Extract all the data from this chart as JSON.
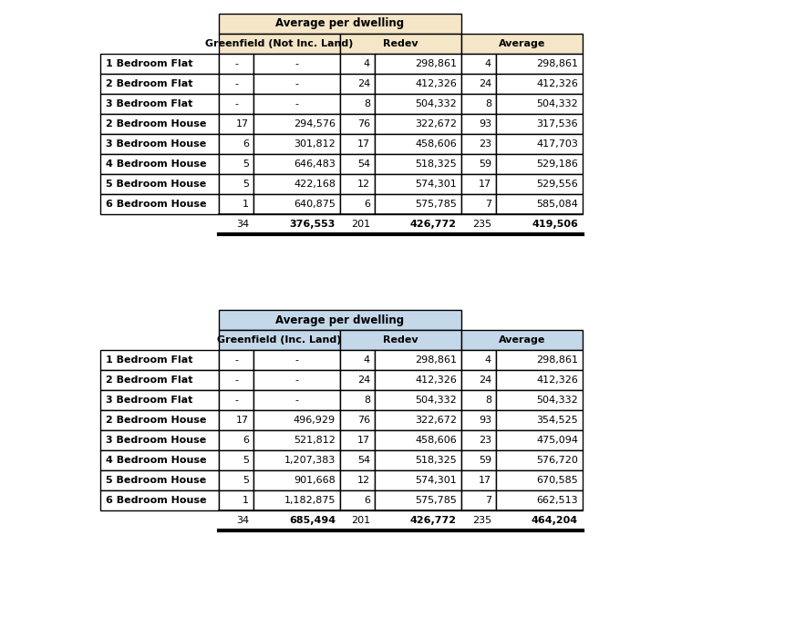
{
  "table1": {
    "title": "Average per dwelling",
    "header_color": "#F5E6C8",
    "col_headers": [
      "Greenfield (Not Inc. Land)",
      "Redev",
      "Average"
    ],
    "row_labels": [
      "1 Bedroom Flat",
      "2 Bedroom Flat",
      "3 Bedroom Flat",
      "2 Bedroom House",
      "3 Bedroom House",
      "4 Bedroom House",
      "5 Bedroom House",
      "6 Bedroom House"
    ],
    "data": [
      [
        "-",
        "-",
        "4",
        "298,861",
        "4",
        "298,861"
      ],
      [
        "-",
        "-",
        "24",
        "412,326",
        "24",
        "412,326"
      ],
      [
        "-",
        "-",
        "8",
        "504,332",
        "8",
        "504,332"
      ],
      [
        "17",
        "294,576",
        "76",
        "322,672",
        "93",
        "317,536"
      ],
      [
        "6",
        "301,812",
        "17",
        "458,606",
        "23",
        "417,703"
      ],
      [
        "5",
        "646,483",
        "54",
        "518,325",
        "59",
        "529,186"
      ],
      [
        "5",
        "422,168",
        "12",
        "574,301",
        "17",
        "529,556"
      ],
      [
        "1",
        "640,875",
        "6",
        "575,785",
        "7",
        "585,084"
      ]
    ],
    "totals": [
      "34",
      "376,553",
      "201",
      "426,772",
      "235",
      "419,506"
    ]
  },
  "table2": {
    "title": "Average per dwelling",
    "header_color": "#C5D8EA",
    "col_headers": [
      "Greenfield (Inc. Land)",
      "Redev",
      "Average"
    ],
    "row_labels": [
      "1 Bedroom Flat",
      "2 Bedroom Flat",
      "3 Bedroom Flat",
      "2 Bedroom House",
      "3 Bedroom House",
      "4 Bedroom House",
      "5 Bedroom House",
      "6 Bedroom House"
    ],
    "data": [
      [
        "-",
        "-",
        "4",
        "298,861",
        "4",
        "298,861"
      ],
      [
        "-",
        "-",
        "24",
        "412,326",
        "24",
        "412,326"
      ],
      [
        "-",
        "-",
        "8",
        "504,332",
        "8",
        "504,332"
      ],
      [
        "17",
        "496,929",
        "76",
        "322,672",
        "93",
        "354,525"
      ],
      [
        "6",
        "521,812",
        "17",
        "458,606",
        "23",
        "475,094"
      ],
      [
        "5",
        "1,207,383",
        "54",
        "518,325",
        "59",
        "576,720"
      ],
      [
        "5",
        "901,668",
        "12",
        "574,301",
        "17",
        "670,585"
      ],
      [
        "1",
        "1,182,875",
        "6",
        "575,785",
        "7",
        "662,513"
      ]
    ],
    "totals": [
      "34",
      "685,494",
      "201",
      "426,772",
      "235",
      "464,204"
    ]
  },
  "bg_color": "#FFFFFF",
  "border_color": "#000000",
  "text_color": "#000000",
  "font_size": 8.5
}
